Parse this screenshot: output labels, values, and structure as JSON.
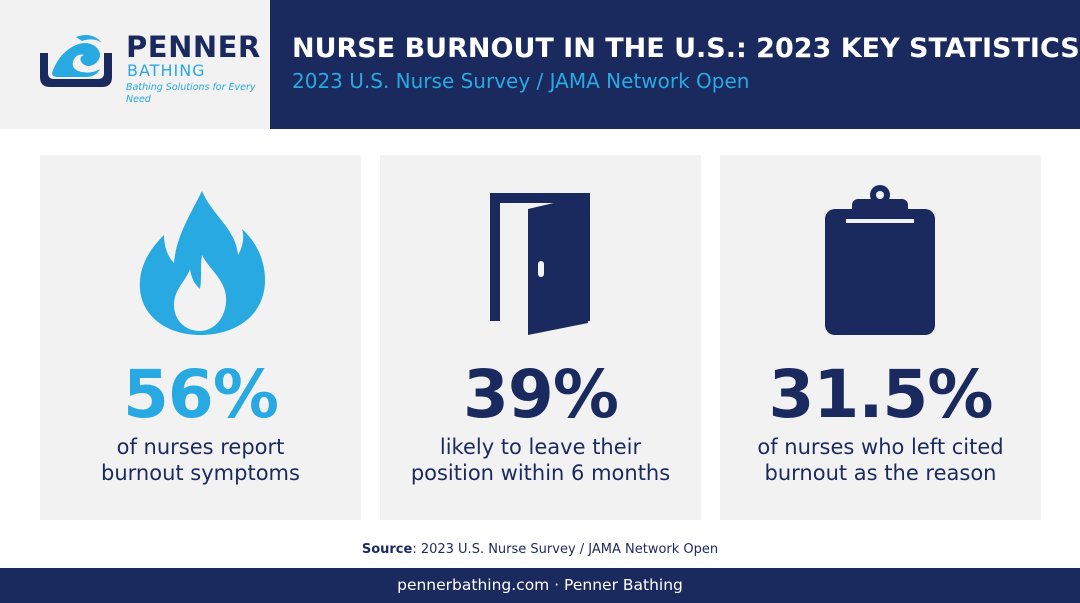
{
  "brand": {
    "name": "PENNER",
    "sub": "BATHING",
    "tagline": "Bathing Solutions for Every Need",
    "logo_icon": "wave-tub-logo-icon"
  },
  "header": {
    "title": "NURSE BURNOUT IN THE U.S.: 2023 KEY STATISTICS",
    "subtitle": "2023 U.S. Nurse Survey / JAMA Network Open"
  },
  "stats": [
    {
      "value": "56%",
      "desc_line1": "of nurses report",
      "desc_line2": "burnout symptoms",
      "icon": "flame-icon",
      "color": "#29a9e1"
    },
    {
      "value": "39%",
      "desc_line1": "likely to leave their",
      "desc_line2": "position within 6 months",
      "icon": "open-door-icon",
      "color": "#1b2a5e"
    },
    {
      "value": "31.5%",
      "desc_line1": "of nurses who left cited",
      "desc_line2": "burnout as the reason",
      "icon": "clipboard-icon",
      "color": "#1b2a5e"
    }
  ],
  "source": {
    "label": "Source",
    "text": ": 2023 U.S. Nurse Survey / JAMA Network Open"
  },
  "footer": {
    "text": "pennerbathing.com · Penner Bathing"
  },
  "colors": {
    "navy": "#1b2a5e",
    "accent": "#29a9e1",
    "card_bg": "#f2f2f2"
  }
}
